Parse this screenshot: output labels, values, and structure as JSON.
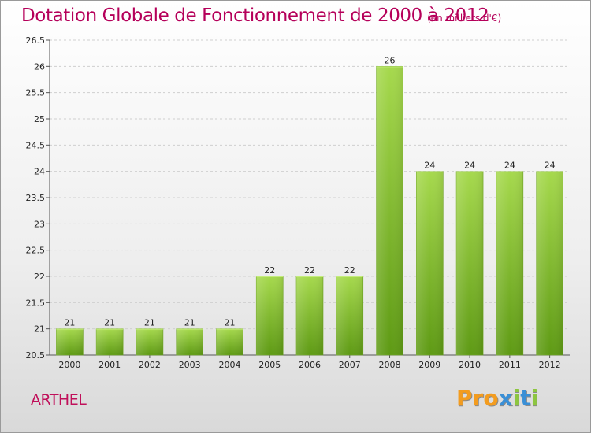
{
  "header": {
    "title": "Dotation Globale de Fonctionnement de 2000 à 2012",
    "subtitle": "(en milliers d'€)"
  },
  "commune": "ARTHEL",
  "logo": {
    "text": "Proxiti",
    "letters": [
      {
        "ch": "P",
        "color": "#f39c1f"
      },
      {
        "ch": "r",
        "color": "#f39c1f"
      },
      {
        "ch": "o",
        "color": "#f39c1f"
      },
      {
        "ch": "x",
        "color": "#3a8fd6"
      },
      {
        "ch": "i",
        "color": "#8dc63f"
      },
      {
        "ch": "t",
        "color": "#3a8fd6"
      },
      {
        "ch": "i",
        "color": "#8dc63f"
      }
    ]
  },
  "chart_data": {
    "type": "bar",
    "title": "Dotation Globale de Fonctionnement de 2000 à 2012",
    "subtitle": "(en milliers d'€)",
    "categories": [
      "2000",
      "2001",
      "2002",
      "2003",
      "2004",
      "2005",
      "2006",
      "2007",
      "2008",
      "2009",
      "2010",
      "2011",
      "2012"
    ],
    "values": [
      21,
      21,
      21,
      21,
      21,
      22,
      22,
      22,
      26,
      24,
      24,
      24,
      24
    ],
    "ylim": [
      20.5,
      26.5
    ],
    "yticks": [
      "20.5",
      "21",
      "21.5",
      "22",
      "22.5",
      "23",
      "23.5",
      "24",
      "24.5",
      "25",
      "25.5",
      "26",
      "26.5"
    ],
    "grid": true,
    "bar_color": "#7fba2a"
  }
}
